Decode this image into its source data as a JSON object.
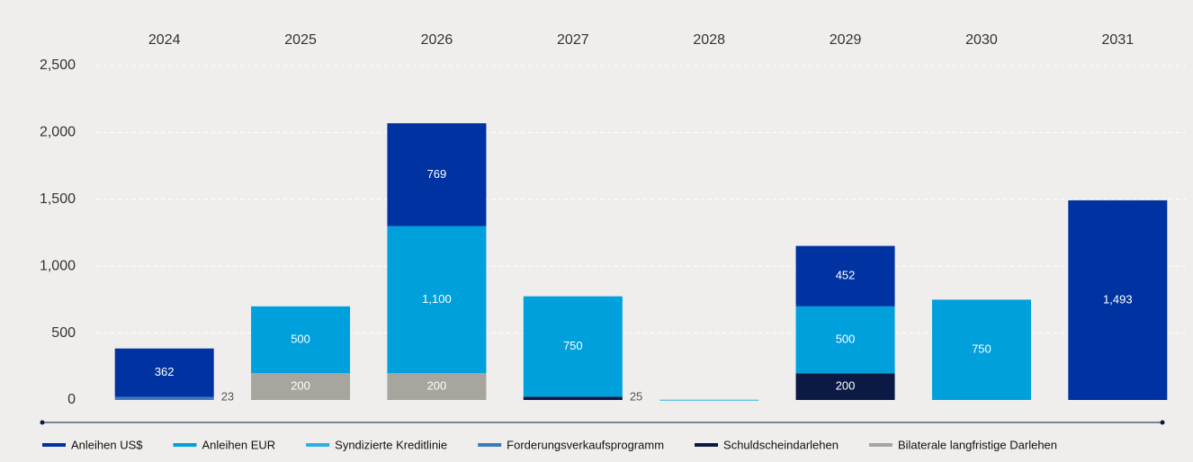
{
  "chart_data": {
    "type": "stacked_bar",
    "categories": [
      "2024",
      "2025",
      "2026",
      "2027",
      "2028",
      "2029",
      "2030",
      "2031"
    ],
    "series": [
      {
        "name": "Schuldscheindarlehen",
        "color": "#0b1a45",
        "values": [
          null,
          null,
          null,
          25,
          null,
          200,
          null,
          null
        ]
      },
      {
        "name": "Bilaterale langfristige Darlehen",
        "color": "#a8a59f",
        "values": [
          null,
          200,
          200,
          null,
          null,
          null,
          null,
          null
        ]
      },
      {
        "name": "Forderungsverkaufsprogramm",
        "color": "#3b7cc0",
        "values": [
          23,
          null,
          null,
          null,
          null,
          null,
          null,
          null
        ]
      },
      {
        "name": "Syndizierte Kreditlinie",
        "color": "#2ab0e4",
        "values": [
          null,
          null,
          null,
          null,
          2,
          null,
          null,
          null
        ]
      },
      {
        "name": "Anleihen EUR",
        "color": "#00a0dd",
        "values": [
          null,
          500,
          1100,
          750,
          null,
          500,
          750,
          null
        ],
        "value_labels": [
          null,
          "500",
          "1,100",
          "750",
          null,
          "500",
          "750",
          null
        ]
      },
      {
        "name": "Anleihen US$",
        "color": "#0033a1",
        "values": [
          362,
          null,
          769,
          null,
          null,
          452,
          null,
          1493
        ],
        "value_labels": [
          "362",
          null,
          "769",
          null,
          null,
          "452",
          null,
          "1,493"
        ]
      }
    ],
    "legend_order": [
      "Anleihen US$",
      "Anleihen EUR",
      "Syndizierte Kreditlinie",
      "Forderungsverkaufsprogramm",
      "Schuldscheindarlehen",
      "Bilaterale langfristige Darlehen"
    ],
    "ylim": [
      0,
      2500
    ],
    "yticks": [
      0,
      500,
      {
        "value": 1000,
        "label": "1,000"
      },
      {
        "value": 1500,
        "label": "1,500"
      },
      {
        "value": 2000,
        "label": "2,000"
      },
      {
        "value": 2500,
        "label": "2,500"
      }
    ],
    "grid": true,
    "legend": "bottom"
  }
}
